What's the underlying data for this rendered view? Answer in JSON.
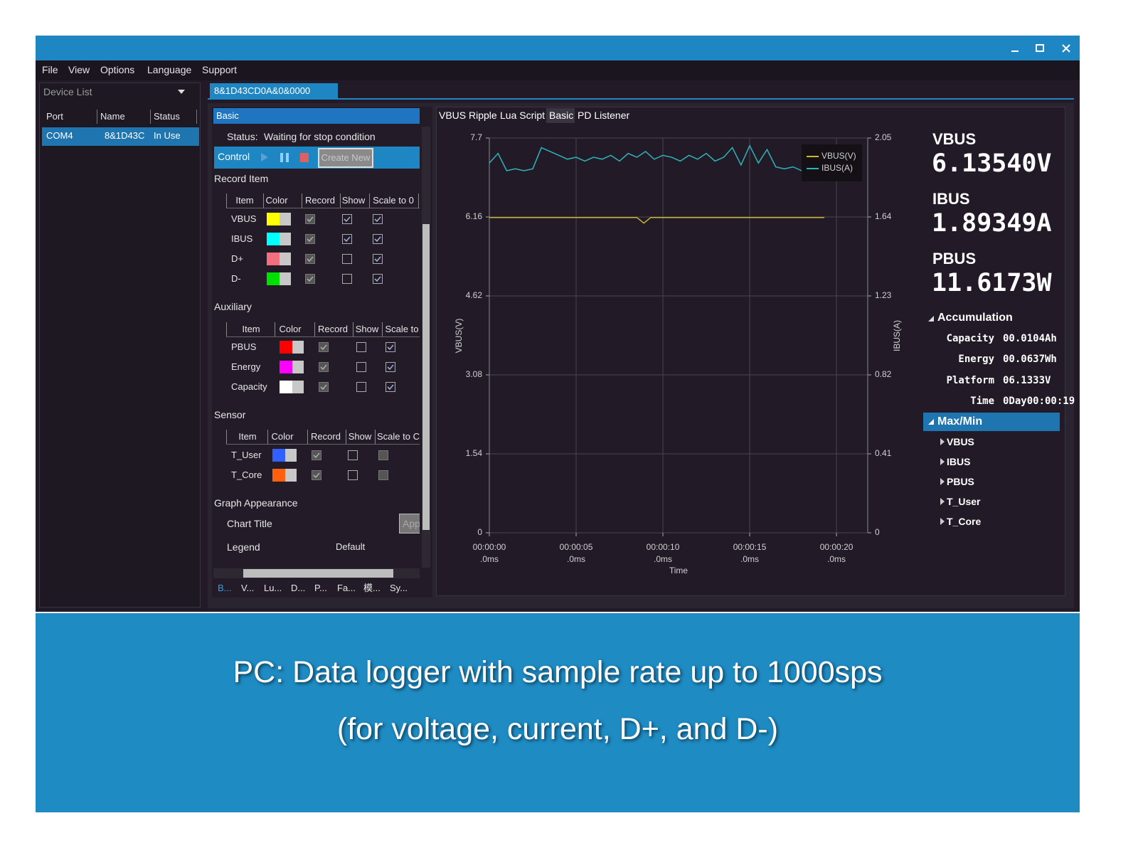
{
  "window": {
    "menu": [
      "File",
      "View",
      "Options",
      "Language",
      "Support"
    ]
  },
  "device_list": {
    "title": "Device List",
    "columns": [
      "Port",
      "Name",
      "Status"
    ],
    "rows": [
      [
        "COM4",
        "8&1D43C",
        "In Use"
      ]
    ]
  },
  "tab": "8&1D43CD0A&0&0000",
  "panel": {
    "title": "Basic",
    "status_label": "Status:",
    "status": "Waiting for stop condition",
    "control": "Control",
    "create_new": "Create New",
    "sections": [
      {
        "title": "Record Item",
        "columns": [
          "Item",
          "Color",
          "Record",
          "Show",
          "Scale to 0"
        ],
        "rows": [
          {
            "item": "VBUS",
            "color": "#ffff00",
            "record": true,
            "show": true,
            "scale": true
          },
          {
            "item": "IBUS",
            "color": "#00ffff",
            "record": true,
            "show": true,
            "scale": true
          },
          {
            "item": "D+",
            "color": "#f07080",
            "record": true,
            "show": false,
            "scale": true
          },
          {
            "item": "D-",
            "color": "#00e000",
            "record": true,
            "show": false,
            "scale": true
          }
        ]
      },
      {
        "title": "Auxiliary",
        "columns": [
          "Item",
          "Color",
          "Record",
          "Show",
          "Scale to"
        ],
        "rows": [
          {
            "item": "PBUS",
            "color": "#ff0000",
            "record": true,
            "show": false,
            "scale": true
          },
          {
            "item": "Energy",
            "color": "#ff00ff",
            "record": true,
            "show": false,
            "scale": true
          },
          {
            "item": "Capacity",
            "color": "#ffffff",
            "record": true,
            "show": false,
            "scale": true
          }
        ]
      },
      {
        "title": "Sensor",
        "columns": [
          "Item",
          "Color",
          "Record",
          "Show",
          "Scale to C"
        ],
        "rows": [
          {
            "item": "T_User",
            "color": "#3060ff",
            "record": true,
            "show": false,
            "scale": false
          },
          {
            "item": "T_Core",
            "color": "#ff6010",
            "record": true,
            "show": false,
            "scale": false
          }
        ]
      }
    ],
    "graph_appearance": {
      "title": "Graph Appearance",
      "chart_title": "Chart Title",
      "apply": "App",
      "legend": "Legend",
      "legend_value": "Default"
    },
    "bottom_tabs": [
      "B...",
      "V...",
      "Lu...",
      "D...",
      "P...",
      "Fa...",
      "模...",
      "Sy..."
    ]
  },
  "chart_tabs": [
    "VBUS Ripple",
    "Lua Script",
    "Basic",
    "PD Listener"
  ],
  "chart_data": {
    "type": "line",
    "x_label": "Time",
    "y_label": "VBUS(V)",
    "y2_label": "IBUS(A)",
    "xlim": [
      0,
      21.8
    ],
    "xticks": [
      {
        "value": 0,
        "label": "00:00:00\n.0ms"
      },
      {
        "value": 5,
        "label": "00:00:05\n.0ms"
      },
      {
        "value": 10,
        "label": "00:00:10\n.0ms"
      },
      {
        "value": 15,
        "label": "00:00:15\n.0ms"
      },
      {
        "value": 20,
        "label": "00:00:20\n.0ms"
      }
    ],
    "ylim": [
      0,
      7.7
    ],
    "yticks": [
      0,
      1.54,
      3.08,
      4.62,
      6.16,
      7.7
    ],
    "y2lim": [
      0,
      2.05
    ],
    "y2ticks": [
      0,
      0.41,
      0.82,
      1.23,
      1.64,
      2.05
    ],
    "grid": true,
    "legend": "upper right",
    "series": [
      {
        "name": "VBUS(V)",
        "color": "#c8b838",
        "x": [
          0,
          8.5,
          8.9,
          9.3,
          19.3
        ],
        "values": [
          6.15,
          6.15,
          6.04,
          6.15,
          6.15
        ]
      },
      {
        "name": "IBUS(A)",
        "color": "#2cb5b8",
        "axis": "y2",
        "x": [
          0,
          0.5,
          1,
          1.5,
          2,
          2.5,
          3,
          3.5,
          4,
          4.5,
          5,
          5.5,
          6,
          6.5,
          7,
          7.5,
          8,
          8.5,
          9,
          9.5,
          10,
          10.5,
          11,
          11.5,
          12,
          12.5,
          13,
          13.5,
          14,
          14.5,
          15,
          15.5,
          16,
          16.5,
          17,
          17.5,
          18,
          18.5
        ],
        "values": [
          1.92,
          1.97,
          1.88,
          1.89,
          1.88,
          1.89,
          2.0,
          1.98,
          1.96,
          1.94,
          1.95,
          1.93,
          1.95,
          1.94,
          1.96,
          1.93,
          1.97,
          1.95,
          1.98,
          1.94,
          1.96,
          1.95,
          1.93,
          1.96,
          1.94,
          1.97,
          1.93,
          1.95,
          2.0,
          1.91,
          2.01,
          1.92,
          1.99,
          1.9,
          1.89,
          1.9,
          1.88,
          1.89
        ]
      }
    ]
  },
  "readings": [
    {
      "label": "VBUS",
      "value": "6.13540V"
    },
    {
      "label": "IBUS",
      "value": "1.89349A"
    },
    {
      "label": "PBUS",
      "value": "11.6173W"
    }
  ],
  "accumulation": {
    "title": "Accumulation",
    "rows": [
      [
        "Capacity",
        "00.0104Ah"
      ],
      [
        "Energy",
        "00.0637Wh"
      ],
      [
        "Platform",
        "06.1333V"
      ],
      [
        "Time",
        "0Day00:00:19"
      ]
    ]
  },
  "maxmin": {
    "title": "Max/Min",
    "items": [
      "VBUS",
      "IBUS",
      "PBUS",
      "T_User",
      "T_Core"
    ]
  },
  "caption": [
    "PC: Data logger with sample rate up to 1000sps",
    "(for voltage, current, D+, and D-)"
  ]
}
